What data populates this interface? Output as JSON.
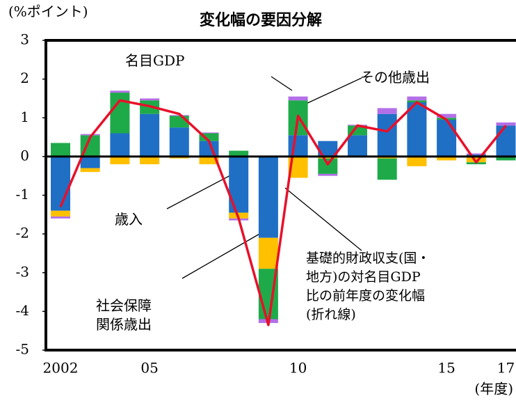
{
  "chart_data": {
    "type": "bar",
    "title": "変化幅の要因分解",
    "y_label": "(%ポイント)",
    "x_label": "(年度)",
    "categories": [
      "2002",
      null,
      null,
      "05",
      null,
      null,
      null,
      null,
      "10",
      null,
      null,
      null,
      null,
      "15",
      null,
      "17"
    ],
    "series": [
      {
        "name": "歳入",
        "color": "#1f6fc5",
        "values": [
          -1.4,
          -0.3,
          0.6,
          1.1,
          0.75,
          0.4,
          -1.45,
          -2.1,
          0.55,
          0.4,
          0.55,
          1.1,
          1.4,
          0.95,
          0.05,
          0.8
        ]
      },
      {
        "name": "社会保障\n関係歳出",
        "color": "#ffc000",
        "values": [
          -0.15,
          -0.1,
          -0.2,
          -0.2,
          -0.05,
          -0.2,
          -0.15,
          -0.8,
          -0.55,
          -0.05,
          -0.02,
          -0.05,
          -0.25,
          -0.1,
          -0.15,
          -0.02
        ]
      },
      {
        "name": "その他歳出",
        "color": "#1faa4a",
        "values": [
          0.35,
          0.55,
          1.05,
          0.35,
          0.3,
          0.2,
          0.15,
          -1.3,
          0.9,
          -0.4,
          0.25,
          -0.55,
          0.05,
          0.05,
          -0.05,
          -0.08
        ]
      },
      {
        "name": "名目GDP",
        "color": "#b36fe8",
        "values": [
          -0.05,
          0.03,
          0.05,
          0.05,
          0.02,
          0.02,
          -0.05,
          -0.1,
          0.1,
          -0.05,
          0.02,
          0.15,
          0.1,
          0.1,
          0.03,
          0.08
        ]
      },
      {
        "name": "基礎的財政収支(国・\n地方)の対名目GDP\n比の前年度の変化幅\n(折れ線)",
        "type": "line",
        "color": "#e8102a",
        "values": [
          -1.3,
          0.5,
          1.45,
          1.3,
          1.1,
          0.4,
          -1.6,
          -4.35,
          1.05,
          -0.2,
          0.8,
          0.65,
          1.4,
          0.95,
          -0.15,
          0.8
        ]
      }
    ],
    "ylim": [
      -5,
      3
    ],
    "yticks": [
      -5,
      -4,
      -3,
      -2,
      -1,
      0,
      1,
      2,
      3
    ]
  }
}
